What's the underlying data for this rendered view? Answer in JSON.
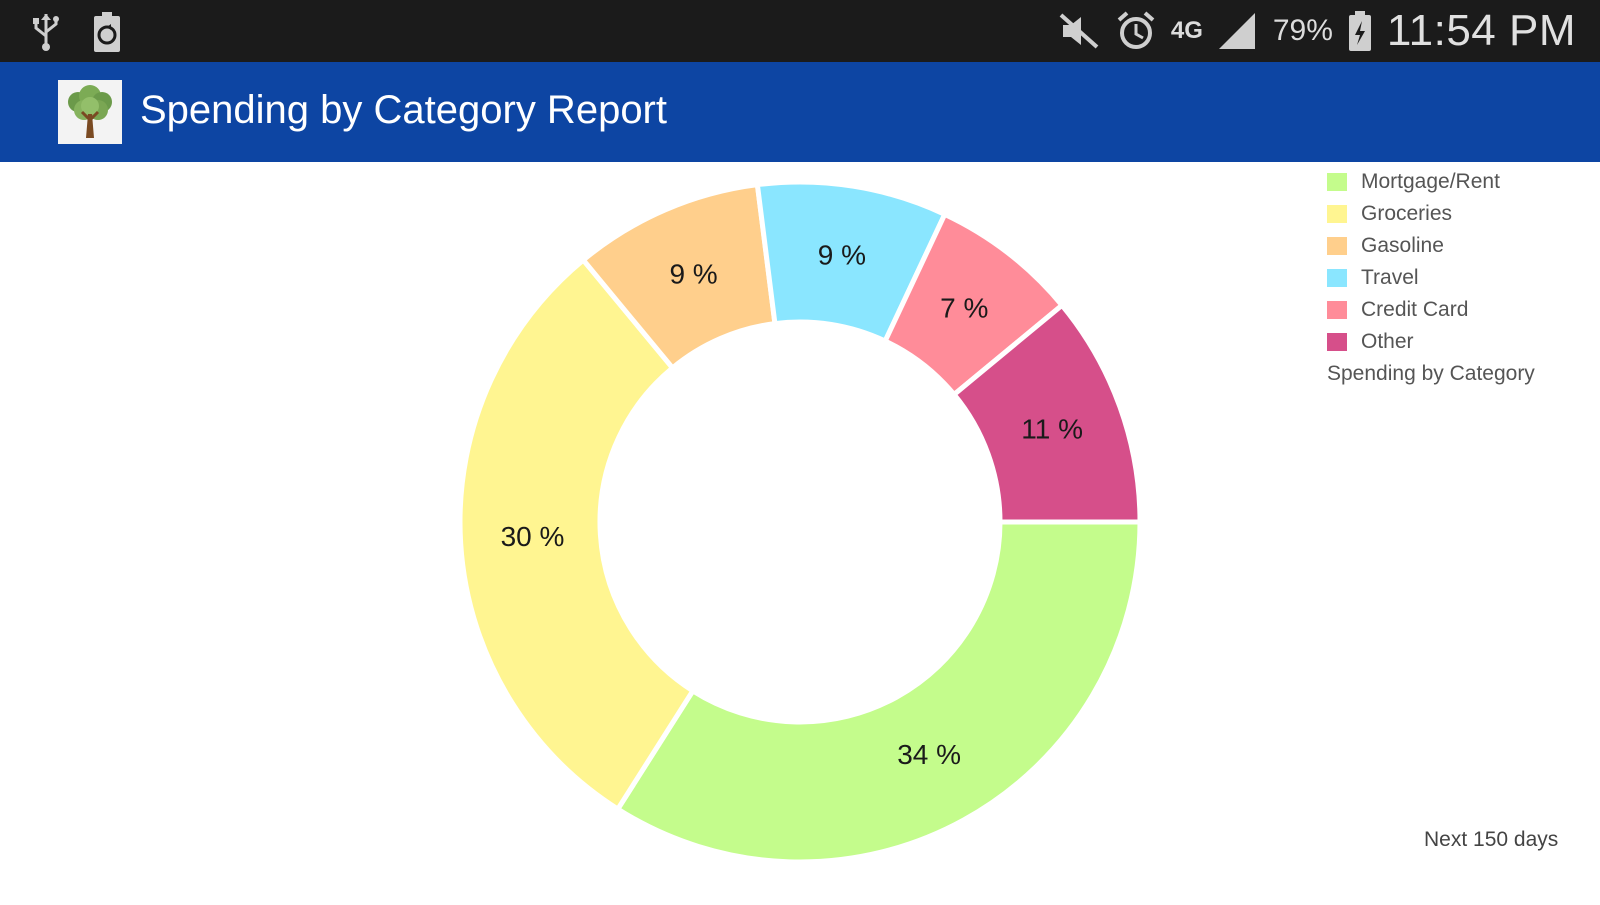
{
  "status_bar": {
    "battery_percent": "79%",
    "time": "11:54 PM",
    "network_label": "4G",
    "icons": [
      "usb-icon",
      "battery-saver-icon",
      "mute-icon",
      "alarm-icon",
      "network-4g-icon",
      "signal-icon",
      "battery-charging-icon"
    ]
  },
  "app_bar": {
    "title": "Spending by Category Report",
    "icon": "money-tree-icon",
    "color": "#0d45a3"
  },
  "chart_data": {
    "type": "pie",
    "donut": true,
    "legend_position": "top-right",
    "legend_caption": "Spending by Category",
    "footnote": "Next 150 days",
    "slices": [
      {
        "name": "Mortgage/Rent",
        "value": 34,
        "label": "34 %",
        "color": "#c4fc8c"
      },
      {
        "name": "Groceries",
        "value": 30,
        "label": "30 %",
        "color": "#fff591"
      },
      {
        "name": "Gasoline",
        "value": 9,
        "label": "9 %",
        "color": "#ffcf8c"
      },
      {
        "name": "Travel",
        "value": 9,
        "label": "9 %",
        "color": "#8ae6ff"
      },
      {
        "name": "Credit Card",
        "value": 7,
        "label": "7 %",
        "color": "#ff8c99"
      },
      {
        "name": "Other",
        "value": 11,
        "label": "11 %",
        "color": "#d64f8a"
      }
    ]
  }
}
